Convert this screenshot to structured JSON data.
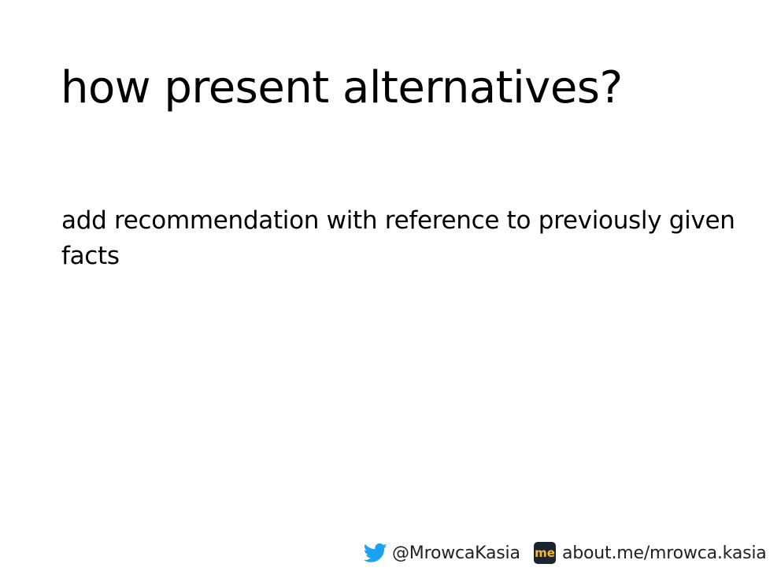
{
  "slide": {
    "title": "how present alternatives?",
    "body": "add recommendation with reference to previously given facts"
  },
  "footer": {
    "twitter_handle": "@MrowcaKasia",
    "aboutme_icon_text": "me",
    "aboutme_link": "about.me/mrowca.kasia"
  },
  "icons": {
    "twitter": "twitter-bird-icon",
    "aboutme": "aboutme-logo-icon"
  },
  "colors": {
    "background": "#ffffff",
    "text": "#000000",
    "twitter_blue": "#1da1f2",
    "aboutme_bg": "#1a2530",
    "aboutme_fg": "#f5b82e"
  }
}
